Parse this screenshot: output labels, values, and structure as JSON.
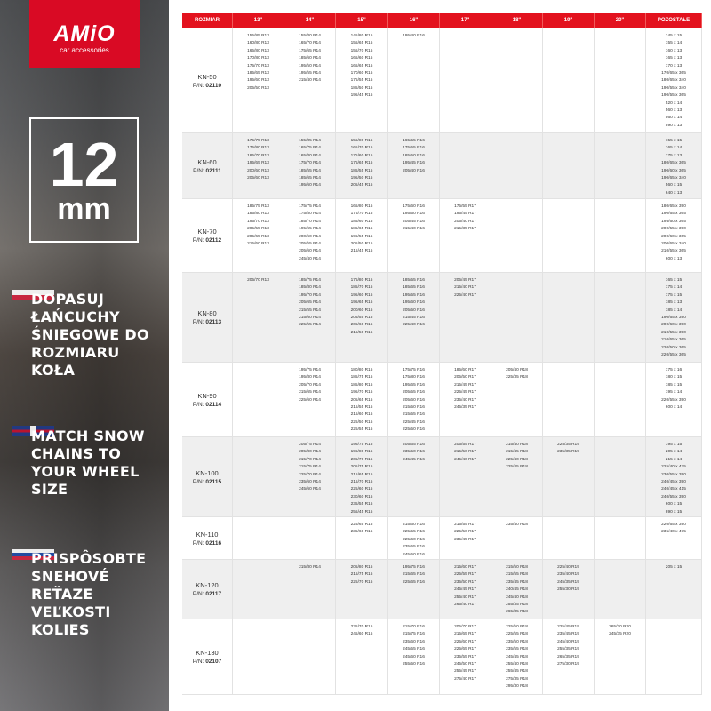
{
  "sidebar": {
    "logo": {
      "brand": "AMiO",
      "sub": "car accessories"
    },
    "badge": {
      "number": "12",
      "unit": "mm"
    },
    "texts": [
      {
        "lang": "pl",
        "flag": "poland-flag",
        "text": "DOPASUJ ŁAŃCUCHY ŚNIEGOWE DO ROZMIARU KOŁA"
      },
      {
        "lang": "en",
        "flag": "uk-flag",
        "text": "MATCH SNOW CHAINS TO YOUR WHEEL SIZE"
      },
      {
        "lang": "sk",
        "flag": "slovakia-flag",
        "text": "PRISPÔSOBTE SNEHOVÉ REŤAZE VEĽKOSTI KOLIES"
      }
    ]
  },
  "colors": {
    "header": "#e3121e",
    "logo": "#d90a24",
    "row_alt": "#efefef"
  },
  "table": {
    "headers": [
      "ROZMIAR",
      "13\"",
      "14\"",
      "15\"",
      "16\"",
      "17\"",
      "18\"",
      "19\"",
      "20\"",
      "POZOSTAŁE"
    ],
    "pn_prefix": "P/N:",
    "rows": [
      {
        "model": "KN-50",
        "pn": "02110",
        "cells": [
          [
            "155/85 R13",
            "160/80 R13",
            "165/80 R13",
            "170/80 R13",
            "175/70 R13",
            "185/65 R13",
            "195/60 R13",
            "205/50 R13"
          ],
          [
            "155/80 R14",
            "165/70 R14",
            "175/65 R14",
            "185/60 R14",
            "195/50 R14",
            "195/55 R14",
            "215/40 R14"
          ],
          [
            "145/80 R15",
            "155/65 R15",
            "155/70 R15",
            "165/60 R15",
            "165/65 R15",
            "170/60 R15",
            "175/55 R15",
            "185/50 R15",
            "195/45 R15"
          ],
          [
            "195/40 R16"
          ],
          [],
          [],
          [],
          [],
          [
            "145 x 15",
            "155 x 14",
            "160 x 13",
            "165 x 13",
            "170 x 13",
            "170/65 x 365",
            "180/65 x 340",
            "190/55 x 340",
            "190/55 x 365",
            "520 x 14",
            "560 x 13",
            "560 x 14",
            "590 x 13"
          ]
        ]
      },
      {
        "model": "KN-60",
        "pn": "02111",
        "cells": [
          [
            "175/75 R13",
            "175/80 R13",
            "185/70 R13",
            "195/65 R13",
            "200/60 R13",
            "205/60 R13"
          ],
          [
            "155/85 R14",
            "165/75 R14",
            "165/80 R14",
            "175/70 R14",
            "185/55 R14",
            "185/65 R14",
            "195/60 R14"
          ],
          [
            "155/80 R15",
            "165/70 R15",
            "175/60 R15",
            "175/65 R15",
            "185/55 R15",
            "195/50 R15",
            "205/45 R15"
          ],
          [
            "165/55 R16",
            "175/55 R16",
            "185/50 R16",
            "195/45 R16",
            "205/40 R16"
          ],
          [],
          [],
          [],
          [],
          [
            "155 x 15",
            "165 x 14",
            "175 x 13",
            "180/65 x 365",
            "190/60 x 365",
            "190/65 x 340",
            "560 x 15",
            "640 x 13"
          ]
        ]
      },
      {
        "model": "KN-70",
        "pn": "02112",
        "cells": [
          [
            "185/75 R13",
            "185/80 R13",
            "195/70 R13",
            "205/55 R13",
            "205/65 R13",
            "215/60 R13"
          ],
          [
            "175/75 R14",
            "175/80 R14",
            "185/70 R14",
            "195/65 R14",
            "200/60 R14",
            "205/55 R14",
            "205/60 R14",
            "245/40 R14"
          ],
          [
            "165/80 R15",
            "175/70 R15",
            "185/60 R15",
            "185/65 R15",
            "195/55 R15",
            "205/50 R15",
            "215/45 R15"
          ],
          [
            "175/60 R16",
            "195/50 R16",
            "205/45 R16",
            "215/40 R16"
          ],
          [
            "175/55 R17",
            "195/45 R17",
            "205/40 R17",
            "215/35 R17"
          ],
          [],
          [],
          [],
          [
            "180/65 x 390",
            "190/65 x 365",
            "195/60 x 365",
            "200/55 x 390",
            "200/60 x 365",
            "200/65 x 340",
            "210/55 x 365",
            "600 x 13"
          ]
        ]
      },
      {
        "model": "KN-80",
        "pn": "02113",
        "cells": [
          [
            "205/70 R13"
          ],
          [
            "185/75 R14",
            "185/80 R14",
            "195/70 R14",
            "205/65 R14",
            "215/55 R14",
            "215/60 R14",
            "225/55 R14"
          ],
          [
            "175/80 R15",
            "185/70 R15",
            "195/60 R15",
            "195/65 R15",
            "200/60 R15",
            "205/55 R15",
            "205/60 R15",
            "215/50 R15"
          ],
          [
            "185/55 R16",
            "185/65 R16",
            "195/55 R16",
            "195/60 R16",
            "205/50 R16",
            "215/45 R16",
            "225/40 R16"
          ],
          [
            "205/45 R17",
            "215/40 R17",
            "225/40 R17"
          ],
          [],
          [],
          [],
          [
            "165 x 15",
            "175 x 14",
            "175 x 15",
            "185 x 13",
            "185 x 14",
            "190/65 x 390",
            "200/60 x 390",
            "210/55 x 390",
            "210/65 x 365",
            "220/50 x 365",
            "220/55 x 365"
          ]
        ]
      },
      {
        "model": "KN-90",
        "pn": "02114",
        "cells": [
          [],
          [
            "195/75 R14",
            "195/80 R14",
            "205/70 R14",
            "215/65 R14",
            "225/60 R14"
          ],
          [
            "180/80 R15",
            "185/75 R15",
            "185/80 R15",
            "195/70 R15",
            "205/65 R15",
            "215/55 R15",
            "215/60 R15",
            "225/50 R15",
            "225/55 R15"
          ],
          [
            "175/75 R16",
            "175/80 R16",
            "195/65 R16",
            "205/55 R16",
            "205/60 R16",
            "215/50 R16",
            "215/55 R16",
            "225/45 R16",
            "225/50 R16"
          ],
          [
            "185/60 R17",
            "205/50 R17",
            "215/45 R17",
            "225/45 R17",
            "235/40 R17",
            "245/35 R17"
          ],
          [
            "205/40 R18",
            "225/35 R18"
          ],
          [],
          [],
          [
            "175 x 16",
            "180 x 15",
            "185 x 15",
            "195 x 14",
            "220/55 x 390",
            "600 x 14"
          ]
        ]
      },
      {
        "model": "KN-100",
        "pn": "02115",
        "cells": [
          [],
          [
            "205/75 R14",
            "205/80 R14",
            "215/70 R14",
            "215/75 R14",
            "225/70 R14",
            "235/60 R14",
            "245/60 R14"
          ],
          [
            "195/75 R15",
            "195/80 R15",
            "205/70 R15",
            "205/75 R15",
            "215/65 R15",
            "215/70 R15",
            "225/60 R15",
            "230/60 R15",
            "235/55 R15",
            "255/45 R15"
          ],
          [
            "205/65 R16",
            "235/50 R16",
            "245/45 R16"
          ],
          [
            "205/55 R17",
            "215/50 R17",
            "245/40 R17"
          ],
          [
            "215/40 R18",
            "215/45 R18",
            "225/40 R18",
            "225/45 R18"
          ],
          [
            "225/35 R19",
            "235/35 R19"
          ],
          [],
          [
            "195 x 15",
            "205 x 14",
            "215 x 14",
            "225/40 x 475",
            "230/55 x 390",
            "240/45 x 390",
            "240/45 x 415",
            "240/55 x 390",
            "600 x 15",
            "890 x 15"
          ]
        ]
      },
      {
        "model": "KN-110",
        "pn": "02116",
        "cells": [
          [],
          [],
          [
            "225/65 R15",
            "235/60 R15"
          ],
          [
            "215/60 R16",
            "225/55 R16",
            "225/60 R16",
            "235/55 R16",
            "245/50 R16"
          ],
          [
            "215/55 R17",
            "225/50 R17",
            "235/45 R17"
          ],
          [
            "235/40 R18"
          ],
          [],
          [],
          [
            "220/65 x 390",
            "235/40 x 475"
          ]
        ]
      },
      {
        "model": "KN-120",
        "pn": "02117",
        "cells": [
          [],
          [
            "215/80 R14"
          ],
          [
            "205/80 R15",
            "215/75 R15",
            "225/70 R15"
          ],
          [
            "195/75 R16",
            "215/65 R16",
            "225/65 R16"
          ],
          [
            "215/60 R17",
            "225/55 R17",
            "235/50 R17",
            "245/45 R17",
            "255/40 R17",
            "265/40 R17"
          ],
          [
            "215/50 R18",
            "215/55 R18",
            "235/45 R18",
            "240/45 R18",
            "245/40 R18",
            "255/35 R18",
            "265/35 R18"
          ],
          [
            "225/40 R19",
            "235/40 R19",
            "245/35 R19",
            "255/30 R19"
          ],
          [],
          [
            "205 x 15"
          ]
        ]
      },
      {
        "model": "KN-130",
        "pn": "02107",
        "cells": [
          [],
          [],
          [
            "235/70 R15",
            "245/60 R15"
          ],
          [
            "215/70 R16",
            "215/75 R16",
            "235/60 R16",
            "245/55 R16",
            "245/60 R16",
            "255/50 R16"
          ],
          [
            "205/70 R17",
            "215/65 R17",
            "225/60 R17",
            "225/65 R17",
            "235/55 R17",
            "245/50 R17",
            "255/45 R17",
            "275/40 R17"
          ],
          [
            "225/50 R18",
            "225/55 R18",
            "235/50 R18",
            "235/55 R18",
            "245/45 R18",
            "255/40 R18",
            "255/45 R18",
            "275/35 R18",
            "295/30 R18"
          ],
          [
            "225/45 R19",
            "235/45 R19",
            "245/40 R19",
            "255/35 R19",
            "265/35 R19",
            "275/30 R19"
          ],
          [
            "265/30 R20",
            "245/35 R20"
          ],
          []
        ]
      }
    ]
  }
}
